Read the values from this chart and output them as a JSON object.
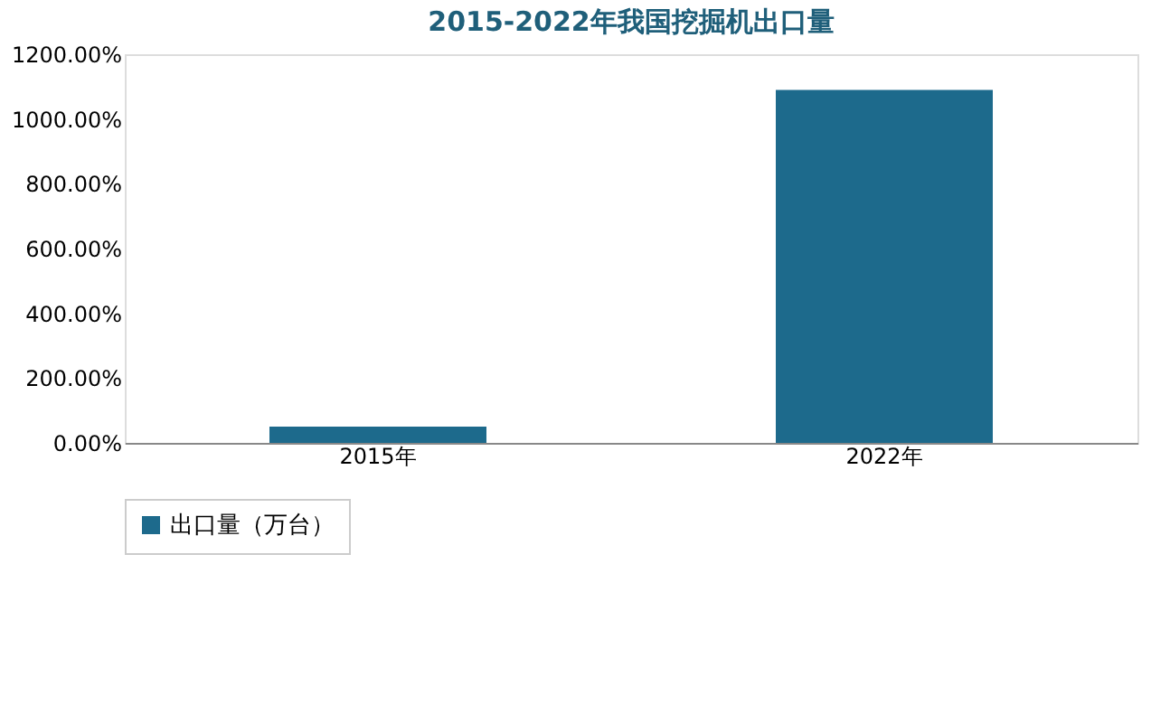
{
  "chart_data": {
    "type": "bar",
    "title": "2015-2022年我国挖掘机出口量",
    "categories": [
      "2015年",
      "2022年"
    ],
    "series": [
      {
        "name": "出口量（万台）",
        "color": "#1d6a8c",
        "values": [
          50,
          1090
        ]
      }
    ],
    "ylim": [
      0,
      1200
    ],
    "yticks": [
      {
        "value": 0,
        "label": "0.00%"
      },
      {
        "value": 200,
        "label": "200.00%"
      },
      {
        "value": 400,
        "label": "400.00%"
      },
      {
        "value": 600,
        "label": "600.00%"
      },
      {
        "value": 800,
        "label": "800.00%"
      },
      {
        "value": 1000,
        "label": "1000.00%"
      },
      {
        "value": 1200,
        "label": "1200.00%"
      }
    ],
    "grid": false,
    "legend": "bottom"
  }
}
